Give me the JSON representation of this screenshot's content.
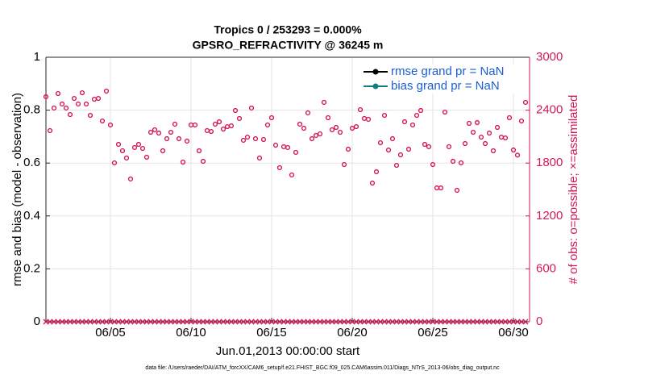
{
  "chart_data": {
    "type": "scatter",
    "title": "Tropics 0 / 253293 = 0.000%",
    "subtitle": "GPSRO_REFRACTIVITY @ 36245 m",
    "xlabel": "Jun.01,2013 00:00:00 start",
    "ylabel": "rmse and bias (model - observation)",
    "y2label": "# of obs: o=possible; ×=assimilated",
    "note": "data file: /Users/raeder/DAI/ATM_forcXX/CAM6_setup/f.e21.FHIST_BGC.f09_025.CAM6assim.011/Diags_NTrS_2013-06/obs_diag_output.nc",
    "xlim": [
      1,
      31
    ],
    "xticks": [
      {
        "value": 5,
        "label": "06/05"
      },
      {
        "value": 10,
        "label": "06/10"
      },
      {
        "value": 15,
        "label": "06/15"
      },
      {
        "value": 20,
        "label": "06/20"
      },
      {
        "value": 25,
        "label": "06/25"
      },
      {
        "value": 30,
        "label": "06/30"
      }
    ],
    "ylim": [
      0,
      1
    ],
    "yticks": [
      0,
      0.2,
      0.4,
      0.6,
      0.8,
      1
    ],
    "y2lim": [
      0,
      3000
    ],
    "y2ticks": [
      0,
      600,
      1200,
      1800,
      2400,
      3000
    ],
    "grid": true,
    "legend": "upper right",
    "series": [
      {
        "name": "rmse grand pr = NaN",
        "color": "#000000"
      },
      {
        "name": "bias grand pr = NaN",
        "color": "#137c7c"
      }
    ],
    "x": [
      1,
      1.25,
      1.5,
      1.75,
      2,
      2.25,
      2.5,
      2.75,
      3,
      3.25,
      3.5,
      3.75,
      4,
      4.25,
      4.5,
      4.75,
      5,
      5.25,
      5.5,
      5.75,
      6,
      6.25,
      6.5,
      6.75,
      7,
      7.25,
      7.5,
      7.75,
      8,
      8.25,
      8.5,
      8.75,
      9,
      9.25,
      9.5,
      9.75,
      10,
      10.25,
      10.5,
      10.75,
      11,
      11.25,
      11.5,
      11.75,
      12,
      12.25,
      12.5,
      12.75,
      13,
      13.25,
      13.5,
      13.75,
      14,
      14.25,
      14.5,
      14.75,
      15,
      15.25,
      15.5,
      15.75,
      16,
      16.25,
      16.5,
      16.75,
      17,
      17.25,
      17.5,
      17.75,
      18,
      18.25,
      18.5,
      18.75,
      19,
      19.25,
      19.5,
      19.75,
      20,
      20.25,
      20.5,
      20.75,
      21,
      21.25,
      21.5,
      21.75,
      22,
      22.25,
      22.5,
      22.75,
      23,
      23.25,
      23.5,
      23.75,
      24,
      24.25,
      24.5,
      24.75,
      25,
      25.25,
      25.5,
      25.75,
      26,
      26.25,
      26.5,
      26.75,
      27,
      27.25,
      27.5,
      27.75,
      28,
      28.25,
      28.5,
      28.75,
      29,
      29.25,
      29.5,
      29.75,
      30,
      30.25,
      30.5,
      30.75
    ],
    "possible": {
      "color": "#d3175c",
      "axis": "y2",
      "values": [
        2552,
        2168,
        2424,
        2588,
        2470,
        2424,
        2350,
        2533,
        2470,
        2597,
        2470,
        2341,
        2524,
        2533,
        2277,
        2616,
        2232,
        1802,
        2012,
        1939,
        1857,
        1619,
        1976,
        2012,
        1966,
        1866,
        2149,
        2177,
        2140,
        1939,
        2076,
        2149,
        2241,
        2076,
        1811,
        2049,
        2232,
        2232,
        1939,
        1820,
        2168,
        2158,
        2241,
        2268,
        2186,
        2213,
        2222,
        2396,
        2305,
        2058,
        2094,
        2424,
        2076,
        1857,
        2067,
        2232,
        2314,
        2003,
        1747,
        1985,
        1976,
        1665,
        1921,
        2241,
        2195,
        2369,
        2076,
        2113,
        2131,
        2488,
        2314,
        2177,
        2204,
        2149,
        1783,
        1957,
        2195,
        2213,
        2405,
        2305,
        2296,
        1573,
        1701,
        2030,
        2341,
        1948,
        2076,
        1774,
        1893,
        2268,
        1957,
        2232,
        2341,
        2396,
        2012,
        1985,
        1783,
        1518,
        1518,
        2378,
        1985,
        1820,
        1491,
        1802,
        2021,
        2250,
        2149,
        2259,
        2094,
        2021,
        2140,
        1939,
        2204,
        2094,
        2085,
        2314,
        1948,
        1890,
        2277,
        2488
      ]
    },
    "assimilated": {
      "color": "#d3175c",
      "axis": "y2",
      "values": [
        0,
        0,
        0,
        0,
        0,
        0,
        0,
        0,
        0,
        0,
        0,
        0,
        0,
        0,
        0,
        0,
        0,
        0,
        0,
        0,
        0,
        0,
        0,
        0,
        0,
        0,
        0,
        0,
        0,
        0,
        0,
        0,
        0,
        0,
        0,
        0,
        0,
        0,
        0,
        0,
        0,
        0,
        0,
        0,
        0,
        0,
        0,
        0,
        0,
        0,
        0,
        0,
        0,
        0,
        0,
        0,
        0,
        0,
        0,
        0,
        0,
        0,
        0,
        0,
        0,
        0,
        0,
        0,
        0,
        0,
        0,
        0,
        0,
        0,
        0,
        0,
        0,
        0,
        0,
        0,
        0,
        0,
        0,
        0,
        0,
        0,
        0,
        0,
        0,
        0,
        0,
        0,
        0,
        0,
        0,
        0,
        0,
        0,
        0,
        0,
        0,
        0,
        0,
        0,
        0,
        0,
        0,
        0,
        0,
        0,
        0,
        0,
        0,
        0,
        0,
        0,
        0,
        0,
        0,
        0
      ]
    }
  }
}
